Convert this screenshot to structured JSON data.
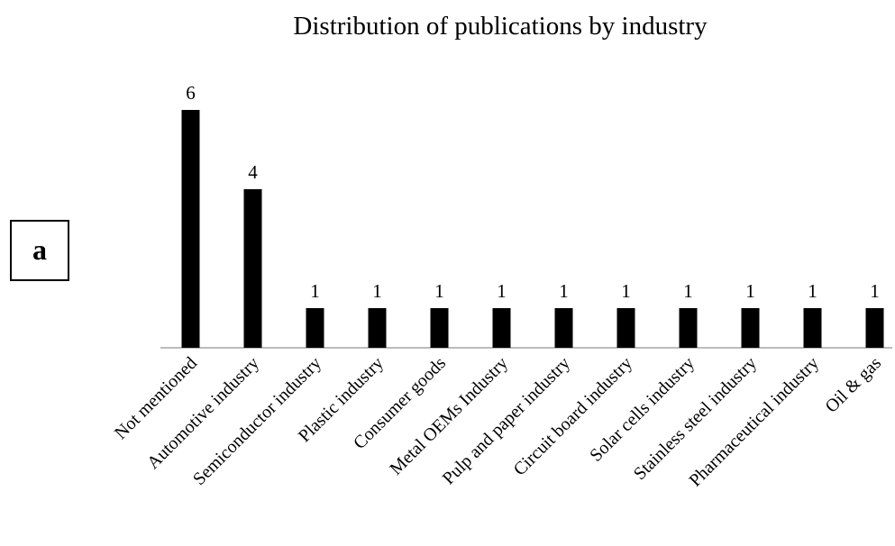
{
  "chart_data": {
    "type": "bar",
    "title": "Distribution of publications by industry",
    "annotation": "a",
    "categories": [
      "Not mentioned",
      "Automotive industry",
      "Semiconductor industry",
      "Plastic industry",
      "Consumer goods",
      "Metal OEMs Industry",
      "Pulp and paper industry",
      "Circuit board industry",
      "Solar cells industry",
      "Stainless steel industry",
      "Pharmaceutical industry",
      "Oil & gas"
    ],
    "values": [
      6,
      4,
      1,
      1,
      1,
      1,
      1,
      1,
      1,
      1,
      1,
      1
    ],
    "color": "#000000",
    "grid": false
  }
}
